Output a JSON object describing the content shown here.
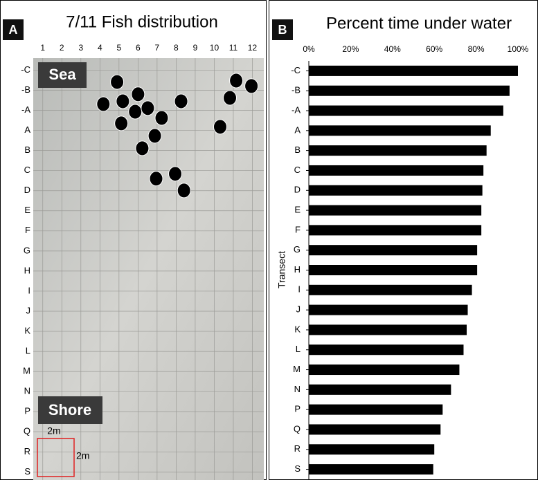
{
  "chart_data": [
    {
      "type": "scatter",
      "panel": "A",
      "title": "7/11 Fish distribution",
      "labels": {
        "sea": "Sea",
        "shore": "Shore",
        "scale_top": "2m",
        "scale_side": "2m"
      },
      "xlim": [
        0.5,
        12.6
      ],
      "xticks": [
        1,
        2,
        3,
        4,
        5,
        6,
        7,
        8,
        9,
        10,
        11,
        12
      ],
      "ylim": [
        21.4,
        0.4
      ],
      "yticks": [
        {
          "value": 1,
          "label": "-C"
        },
        {
          "value": 2,
          "label": "-B"
        },
        {
          "value": 3,
          "label": "-A"
        },
        {
          "value": 4,
          "label": "A"
        },
        {
          "value": 5,
          "label": "B"
        },
        {
          "value": 6,
          "label": "C"
        },
        {
          "value": 7,
          "label": "D"
        },
        {
          "value": 8,
          "label": "E"
        },
        {
          "value": 9,
          "label": "F"
        },
        {
          "value": 10,
          "label": "G"
        },
        {
          "value": 11,
          "label": "H"
        },
        {
          "value": 12,
          "label": "I"
        },
        {
          "value": 13,
          "label": "J"
        },
        {
          "value": 14,
          "label": "K"
        },
        {
          "value": 15,
          "label": "L"
        },
        {
          "value": 16,
          "label": "M"
        },
        {
          "value": 17,
          "label": "N"
        },
        {
          "value": 18,
          "label": "P"
        },
        {
          "value": 19,
          "label": "Q"
        },
        {
          "value": 20,
          "label": "R"
        },
        {
          "value": 21,
          "label": "S"
        }
      ],
      "color": "#000000",
      "x": [
        4.9,
        4.18,
        5.2,
        6.0,
        5.85,
        6.51,
        5.12,
        7.24,
        6.88,
        6.22,
        8.26,
        10.31,
        10.82,
        11.15,
        11.95,
        6.95,
        7.95,
        8.41
      ],
      "y": [
        1.59,
        2.69,
        2.55,
        2.2,
        3.07,
        2.89,
        3.65,
        3.38,
        4.27,
        4.89,
        2.55,
        3.82,
        2.38,
        1.52,
        1.79,
        6.4,
        6.16,
        6.99
      ]
    },
    {
      "type": "bar",
      "panel": "B",
      "title": "Percent time under water",
      "y_label": "Transect",
      "categories": [
        "-C",
        "-B",
        "-A",
        "A",
        "B",
        "C",
        "D",
        "E",
        "F",
        "G",
        "H",
        "I",
        "J",
        "K",
        "L",
        "M",
        "N",
        "P",
        "Q",
        "R",
        "S"
      ],
      "values": [
        100,
        96,
        93,
        87,
        85,
        83.5,
        83,
        82.5,
        82.5,
        80.5,
        80.5,
        78,
        76,
        75.5,
        74,
        72,
        68,
        64,
        63,
        60,
        59.5
      ],
      "color": "#000000",
      "xlim": [
        0,
        100
      ],
      "xticks": [
        {
          "value": 0,
          "label": "0%"
        },
        {
          "value": 20,
          "label": "20%"
        },
        {
          "value": 40,
          "label": "40%"
        },
        {
          "value": 60,
          "label": "60%"
        },
        {
          "value": 80,
          "label": "80%"
        },
        {
          "value": 100,
          "label": "100%"
        }
      ]
    }
  ]
}
